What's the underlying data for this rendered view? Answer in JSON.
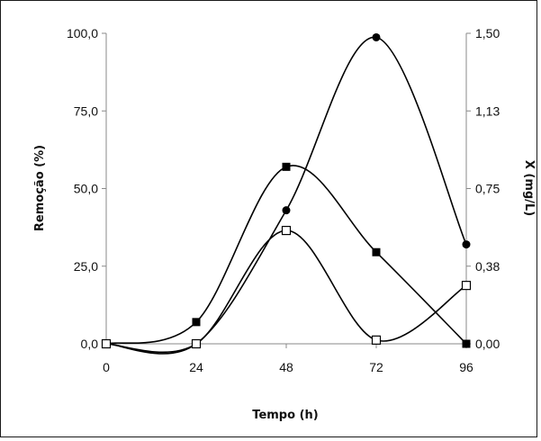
{
  "chart_data": {
    "type": "line",
    "title": "",
    "xlabel": "Tempo (h)",
    "ylabel": "Remoção (%)",
    "y2label": "X (mg/L)",
    "x": [
      0,
      24,
      48,
      72,
      96
    ],
    "x_tick_labels": [
      "0",
      "24",
      "48",
      "72",
      "96"
    ],
    "xlim": [
      0,
      96
    ],
    "ylim": [
      0,
      100
    ],
    "y_tick_labels": [
      "0,0",
      "25,0",
      "50,0",
      "75,0",
      "100,0"
    ],
    "y2lim": [
      0,
      1.5
    ],
    "y2_tick_labels": [
      "0,00",
      "0,38",
      "0,75",
      "1,13",
      "1,50"
    ],
    "grid": false,
    "legend": "none",
    "series": [
      {
        "marker": "filled-square",
        "axis": "left",
        "values": [
          0,
          7.0,
          57.0,
          29.5,
          0
        ],
        "color": "#000000"
      },
      {
        "marker": "filled-circle",
        "axis": "left",
        "values": [
          0,
          0,
          43.0,
          98.7,
          32.0
        ],
        "color": "#000000"
      },
      {
        "marker": "open-square",
        "axis": "left",
        "values": [
          0,
          0,
          36.5,
          1.2,
          18.8
        ],
        "color": "#000000"
      }
    ]
  }
}
